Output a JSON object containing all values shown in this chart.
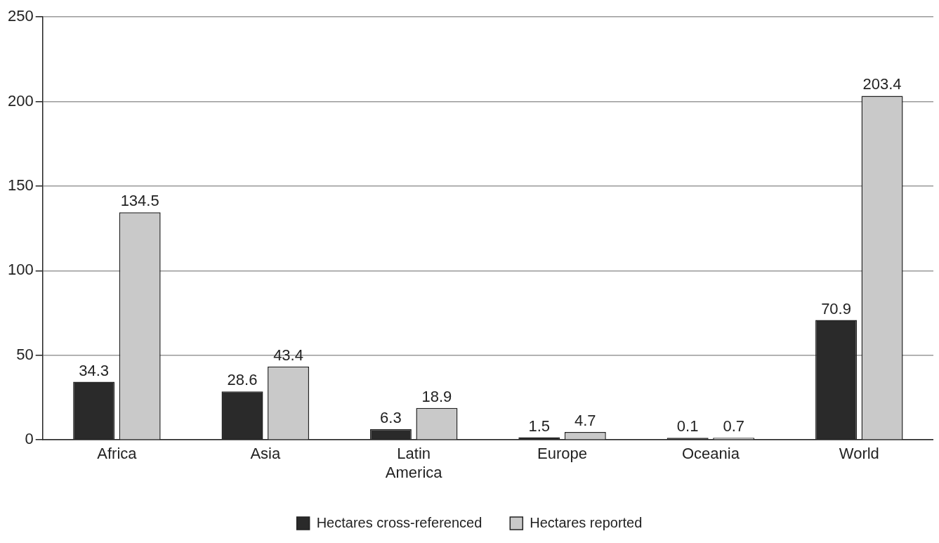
{
  "chart_data": {
    "type": "bar",
    "categories": [
      "Africa",
      "Asia",
      "Latin America",
      "Europe",
      "Oceania",
      "World"
    ],
    "series": [
      {
        "name": "Hectares cross-referenced",
        "color": "#2a2a2a",
        "values": [
          34.3,
          28.6,
          6.3,
          1.5,
          0.1,
          70.9
        ]
      },
      {
        "name": "Hectares reported",
        "color": "#c9c9c9",
        "values": [
          134.5,
          43.4,
          18.9,
          4.7,
          0.7,
          203.4
        ]
      }
    ],
    "ylim": [
      0,
      250
    ],
    "yticks": [
      0,
      50,
      100,
      150,
      200,
      250
    ],
    "grid": "y",
    "legend": "bottom",
    "data_labels": true
  }
}
